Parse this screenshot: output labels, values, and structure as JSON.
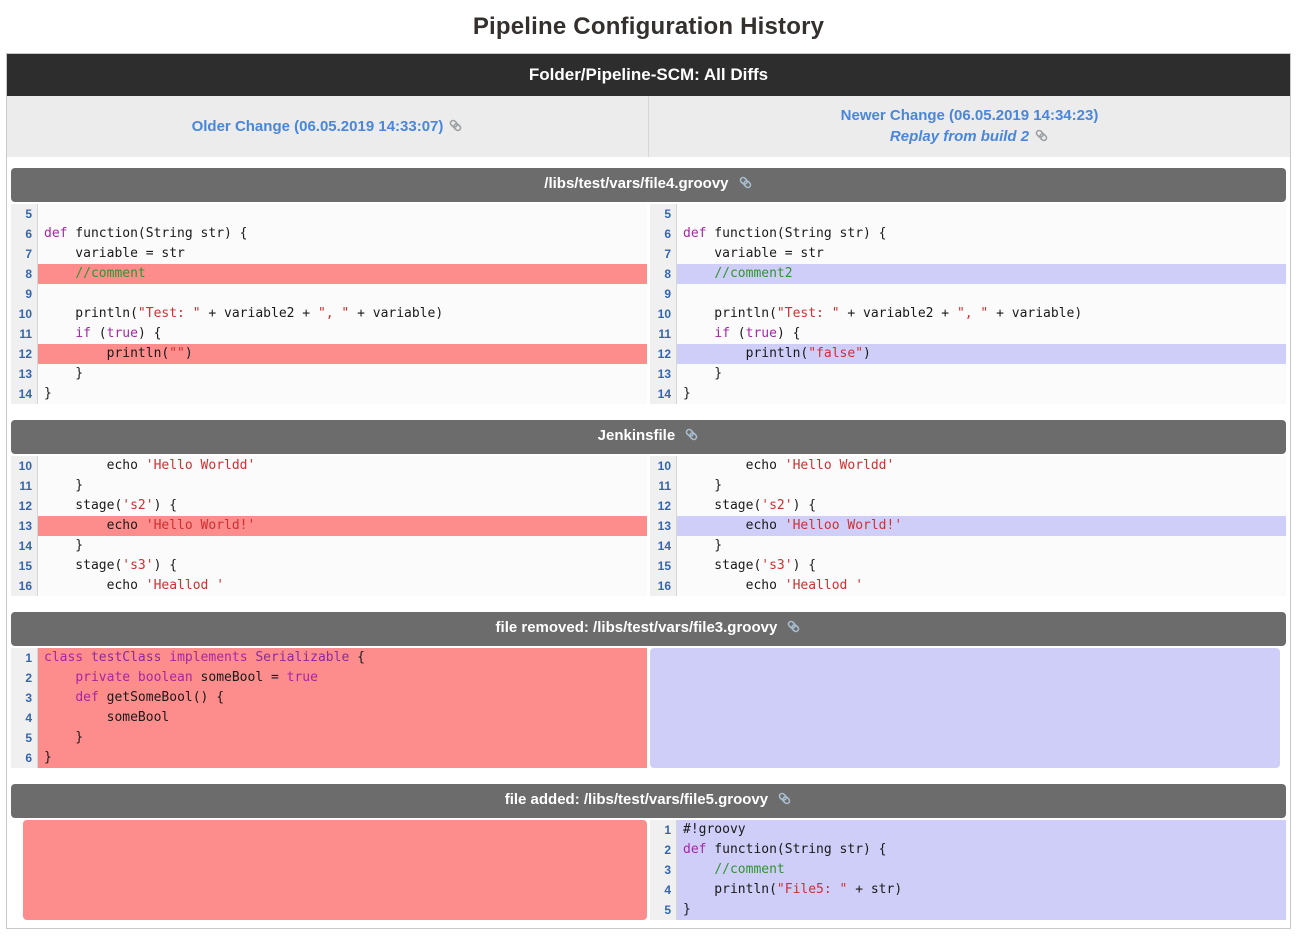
{
  "page_title": "Pipeline Configuration History",
  "header": {
    "title": "Folder/Pipeline-SCM: All Diffs"
  },
  "nav": {
    "older_label": "Older Change (06.05.2019 14:33:07)",
    "newer_label": "Newer Change (06.05.2019 14:34:23)",
    "replay_label": "Replay from build 2"
  },
  "colors": {
    "link_blue": "#4a86db",
    "removed_highlight": "#fd8c8c",
    "added_highlight": "#cecef8",
    "main_header_bg": "#2d2d2d",
    "section_header_bg": "#6c6c6c"
  },
  "icons": {
    "link": "link-icon"
  },
  "sections": [
    {
      "title": "/libs/test/vars/file4.groovy",
      "type": "modified",
      "left": {
        "lines": [
          {
            "n": 5,
            "hl": null,
            "t": []
          },
          {
            "n": 6,
            "hl": null,
            "t": [
              [
                "k",
                "def"
              ],
              [
                "p",
                " function(String str) {"
              ]
            ]
          },
          {
            "n": 7,
            "hl": null,
            "t": [
              [
                "p",
                "    variable = str"
              ]
            ]
          },
          {
            "n": 8,
            "hl": "del",
            "t": [
              [
                "p",
                "    "
              ],
              [
                "c",
                "//comment"
              ]
            ]
          },
          {
            "n": 9,
            "hl": null,
            "t": []
          },
          {
            "n": 10,
            "hl": null,
            "t": [
              [
                "p",
                "    println("
              ],
              [
                "s",
                "\"Test: \""
              ],
              [
                "p",
                " + variable2 + "
              ],
              [
                "s",
                "\", \""
              ],
              [
                "p",
                " + variable)"
              ]
            ]
          },
          {
            "n": 11,
            "hl": null,
            "t": [
              [
                "p",
                "    "
              ],
              [
                "k",
                "if"
              ],
              [
                "p",
                " ("
              ],
              [
                "k",
                "true"
              ],
              [
                "p",
                ") {"
              ]
            ]
          },
          {
            "n": 12,
            "hl": "del",
            "t": [
              [
                "p",
                "        println("
              ],
              [
                "s",
                "\"\""
              ],
              [
                "p",
                ")"
              ]
            ]
          },
          {
            "n": 13,
            "hl": null,
            "t": [
              [
                "p",
                "    }"
              ]
            ]
          },
          {
            "n": 14,
            "hl": null,
            "t": [
              [
                "p",
                "}"
              ]
            ]
          }
        ]
      },
      "right": {
        "lines": [
          {
            "n": 5,
            "hl": null,
            "t": []
          },
          {
            "n": 6,
            "hl": null,
            "t": [
              [
                "k",
                "def"
              ],
              [
                "p",
                " function(String str) {"
              ]
            ]
          },
          {
            "n": 7,
            "hl": null,
            "t": [
              [
                "p",
                "    variable = str"
              ]
            ]
          },
          {
            "n": 8,
            "hl": "add",
            "t": [
              [
                "p",
                "    "
              ],
              [
                "c",
                "//comment2"
              ]
            ]
          },
          {
            "n": 9,
            "hl": null,
            "t": []
          },
          {
            "n": 10,
            "hl": null,
            "t": [
              [
                "p",
                "    println("
              ],
              [
                "s",
                "\"Test: \""
              ],
              [
                "p",
                " + variable2 + "
              ],
              [
                "s",
                "\", \""
              ],
              [
                "p",
                " + variable)"
              ]
            ]
          },
          {
            "n": 11,
            "hl": null,
            "t": [
              [
                "p",
                "    "
              ],
              [
                "k",
                "if"
              ],
              [
                "p",
                " ("
              ],
              [
                "k",
                "true"
              ],
              [
                "p",
                ") {"
              ]
            ]
          },
          {
            "n": 12,
            "hl": "add",
            "t": [
              [
                "p",
                "        println("
              ],
              [
                "s",
                "\"false\""
              ],
              [
                "p",
                ")"
              ]
            ]
          },
          {
            "n": 13,
            "hl": null,
            "t": [
              [
                "p",
                "    }"
              ]
            ]
          },
          {
            "n": 14,
            "hl": null,
            "t": [
              [
                "p",
                "}"
              ]
            ]
          }
        ]
      }
    },
    {
      "title": "Jenkinsfile",
      "type": "modified",
      "left": {
        "lines": [
          {
            "n": 10,
            "hl": null,
            "t": [
              [
                "p",
                "        echo "
              ],
              [
                "s",
                "'Hello Worldd'"
              ]
            ]
          },
          {
            "n": 11,
            "hl": null,
            "t": [
              [
                "p",
                "    }"
              ]
            ]
          },
          {
            "n": 12,
            "hl": null,
            "t": [
              [
                "p",
                "    stage("
              ],
              [
                "s",
                "'s2'"
              ],
              [
                "p",
                ") {"
              ]
            ]
          },
          {
            "n": 13,
            "hl": "del",
            "t": [
              [
                "p",
                "        echo "
              ],
              [
                "s",
                "'Hello World!'"
              ]
            ]
          },
          {
            "n": 14,
            "hl": null,
            "t": [
              [
                "p",
                "    }"
              ]
            ]
          },
          {
            "n": 15,
            "hl": null,
            "t": [
              [
                "p",
                "    stage("
              ],
              [
                "s",
                "'s3'"
              ],
              [
                "p",
                ") {"
              ]
            ]
          },
          {
            "n": 16,
            "hl": null,
            "t": [
              [
                "p",
                "        echo "
              ],
              [
                "s",
                "'Heallod '"
              ]
            ]
          }
        ]
      },
      "right": {
        "lines": [
          {
            "n": 10,
            "hl": null,
            "t": [
              [
                "p",
                "        echo "
              ],
              [
                "s",
                "'Hello Worldd'"
              ]
            ]
          },
          {
            "n": 11,
            "hl": null,
            "t": [
              [
                "p",
                "    }"
              ]
            ]
          },
          {
            "n": 12,
            "hl": null,
            "t": [
              [
                "p",
                "    stage("
              ],
              [
                "s",
                "'s2'"
              ],
              [
                "p",
                ") {"
              ]
            ]
          },
          {
            "n": 13,
            "hl": "add",
            "t": [
              [
                "p",
                "        echo "
              ],
              [
                "s",
                "'Helloo World!'"
              ]
            ]
          },
          {
            "n": 14,
            "hl": null,
            "t": [
              [
                "p",
                "    }"
              ]
            ]
          },
          {
            "n": 15,
            "hl": null,
            "t": [
              [
                "p",
                "    stage("
              ],
              [
                "s",
                "'s3'"
              ],
              [
                "p",
                ") {"
              ]
            ]
          },
          {
            "n": 16,
            "hl": null,
            "t": [
              [
                "p",
                "        echo "
              ],
              [
                "s",
                "'Heallod '"
              ]
            ]
          }
        ]
      }
    },
    {
      "title": "file removed: /libs/test/vars/file3.groovy",
      "type": "removed",
      "left": {
        "lines": [
          {
            "n": 1,
            "hl": "del",
            "t": [
              [
                "k",
                "class"
              ],
              [
                "p",
                " "
              ],
              [
                "t2",
                "testClass"
              ],
              [
                "p",
                " "
              ],
              [
                "k",
                "implements"
              ],
              [
                "p",
                " "
              ],
              [
                "t2",
                "Serializable"
              ],
              [
                "p",
                " {"
              ]
            ]
          },
          {
            "n": 2,
            "hl": "del",
            "t": [
              [
                "p",
                "    "
              ],
              [
                "k",
                "private boolean"
              ],
              [
                "p",
                " someBool = "
              ],
              [
                "k",
                "true"
              ]
            ]
          },
          {
            "n": 3,
            "hl": "del",
            "t": [
              [
                "p",
                "    "
              ],
              [
                "k",
                "def"
              ],
              [
                "p",
                " getSomeBool() {"
              ]
            ]
          },
          {
            "n": 4,
            "hl": "del",
            "t": [
              [
                "p",
                "        someBool"
              ]
            ]
          },
          {
            "n": 5,
            "hl": "del",
            "t": [
              [
                "p",
                "    }"
              ]
            ]
          },
          {
            "n": 6,
            "hl": "del",
            "t": [
              [
                "p",
                "}"
              ]
            ]
          }
        ]
      },
      "right": {
        "solid": "add",
        "rows": 6
      }
    },
    {
      "title": "file added: /libs/test/vars/file5.groovy",
      "type": "added",
      "left": {
        "solid": "del",
        "rows": 5
      },
      "right": {
        "lines": [
          {
            "n": 1,
            "hl": "add",
            "t": [
              [
                "p",
                "#!groovy"
              ]
            ]
          },
          {
            "n": 2,
            "hl": "add",
            "t": [
              [
                "k",
                "def"
              ],
              [
                "p",
                " function(String str) {"
              ]
            ]
          },
          {
            "n": 3,
            "hl": "add",
            "t": [
              [
                "p",
                "    "
              ],
              [
                "c",
                "//comment"
              ]
            ]
          },
          {
            "n": 4,
            "hl": "add",
            "t": [
              [
                "p",
                "    println("
              ],
              [
                "s",
                "\"File5: \""
              ],
              [
                "p",
                " + str)"
              ]
            ]
          },
          {
            "n": 5,
            "hl": "add",
            "t": [
              [
                "p",
                "}"
              ]
            ]
          }
        ]
      }
    }
  ]
}
